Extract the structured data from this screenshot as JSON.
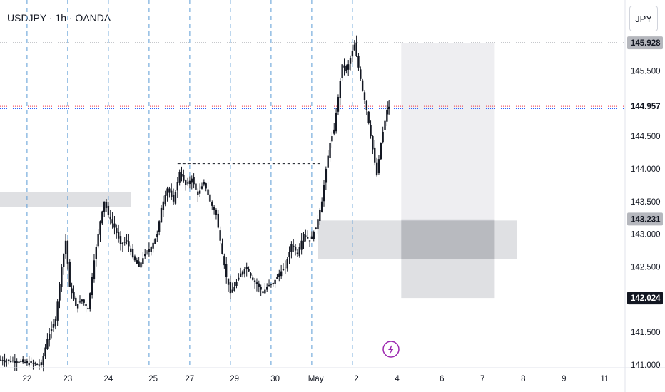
{
  "header": {
    "symbol_title": "USDJPY · 1h · OANDA",
    "currency_button": "JPY"
  },
  "colors": {
    "candle": "#131722",
    "grid_dashed": "#5b9bd5",
    "zone_light": "#dcdde0",
    "zone_lighter": "#ececef",
    "zone_dark": "#b5b7bd",
    "red_line": "#f23645",
    "blue_line": "#2962ff",
    "event_icon": "#9c27b0"
  },
  "price_labels": [
    {
      "label": "145.928",
      "value": 145.928,
      "style": "gray"
    },
    {
      "label": "144.957",
      "value": 144.957,
      "style": "outline"
    },
    {
      "label": "143.231",
      "value": 143.231,
      "style": "gray"
    },
    {
      "label": "142.024",
      "value": 142.024,
      "style": "dark"
    }
  ],
  "event_icon": "lightning-icon",
  "chart_data": {
    "type": "candlestick",
    "title": "USDJPY · 1h · OANDA",
    "ylim": [
      141.0,
      146.3
    ],
    "y_ticks": [
      "145.500",
      "144.500",
      "144.000",
      "143.500",
      "143.000",
      "142.500",
      "141.500",
      "141.000"
    ],
    "x_ticks": [
      "22",
      "23",
      "24",
      "25",
      "27",
      "29",
      "30",
      "May",
      "2",
      "4",
      "6",
      "7",
      "8",
      "9",
      "11"
    ],
    "x_tick_slot": [
      0.7,
      1.7,
      2.7,
      3.8,
      4.7,
      5.8,
      6.8,
      7.8,
      8.8,
      9.8,
      10.9,
      11.9,
      12.9,
      13.9,
      14.9
    ],
    "session_lines_slot": [
      0.7,
      1.7,
      2.7,
      3.7,
      4.7,
      5.7,
      6.7,
      7.7,
      8.7
    ],
    "horizontal_levels": [
      {
        "value": 145.928,
        "style": "dotted"
      },
      {
        "value": 145.5,
        "style": "solid"
      },
      {
        "value": 144.957,
        "style": "red-dotted"
      },
      {
        "value": 144.92,
        "style": "blue-dotted"
      },
      {
        "value": 144.08,
        "style": "black-dashed",
        "from_slot": 4.4,
        "to_slot": 7.9
      }
    ],
    "zones": [
      {
        "name": "left-supply",
        "from_slot": 0.0,
        "to_slot": 3.25,
        "low": 143.42,
        "high": 143.64,
        "shade": "light"
      },
      {
        "name": "demand-zone",
        "from_slot": 7.85,
        "to_slot": 12.75,
        "low": 142.62,
        "high": 143.21,
        "shade": "light"
      },
      {
        "name": "target-box",
        "from_slot": 9.9,
        "to_slot": 12.2,
        "low": 143.231,
        "high": 145.928,
        "shade": "lighter"
      },
      {
        "name": "stop-box",
        "from_slot": 9.9,
        "to_slot": 12.2,
        "low": 142.024,
        "high": 143.231,
        "shade": "light"
      },
      {
        "name": "overlap-box",
        "from_slot": 9.9,
        "to_slot": 12.2,
        "low": 142.62,
        "high": 143.21,
        "shade": "dark"
      }
    ],
    "series": [
      {
        "name": "close",
        "points": [
          [
            0.0,
            141.08
          ],
          [
            0.5,
            141.05
          ],
          [
            1.05,
            141.0
          ],
          [
            1.2,
            141.4
          ],
          [
            1.4,
            141.7
          ],
          [
            1.55,
            142.5
          ],
          [
            1.65,
            142.9
          ],
          [
            1.75,
            142.2
          ],
          [
            1.9,
            141.9
          ],
          [
            2.05,
            142.0
          ],
          [
            2.2,
            141.85
          ],
          [
            2.35,
            142.6
          ],
          [
            2.5,
            143.2
          ],
          [
            2.6,
            143.5
          ],
          [
            2.7,
            143.3
          ],
          [
            2.85,
            143.1
          ],
          [
            3.0,
            142.85
          ],
          [
            3.15,
            142.9
          ],
          [
            3.3,
            142.65
          ],
          [
            3.45,
            142.5
          ],
          [
            3.6,
            142.7
          ],
          [
            3.75,
            142.8
          ],
          [
            3.9,
            143.0
          ],
          [
            4.0,
            143.4
          ],
          [
            4.15,
            143.7
          ],
          [
            4.3,
            143.5
          ],
          [
            4.45,
            143.95
          ],
          [
            4.6,
            143.75
          ],
          [
            4.75,
            143.85
          ],
          [
            4.9,
            143.6
          ],
          [
            5.05,
            143.8
          ],
          [
            5.2,
            143.5
          ],
          [
            5.35,
            143.3
          ],
          [
            5.5,
            142.7
          ],
          [
            5.6,
            142.35
          ],
          [
            5.7,
            142.1
          ],
          [
            5.8,
            142.2
          ],
          [
            5.95,
            142.4
          ],
          [
            6.1,
            142.5
          ],
          [
            6.25,
            142.3
          ],
          [
            6.4,
            142.2
          ],
          [
            6.5,
            142.1
          ],
          [
            6.6,
            142.2
          ],
          [
            6.75,
            142.25
          ],
          [
            6.9,
            142.4
          ],
          [
            7.05,
            142.5
          ],
          [
            7.2,
            142.85
          ],
          [
            7.35,
            142.7
          ],
          [
            7.5,
            143.0
          ],
          [
            7.65,
            142.9
          ],
          [
            7.8,
            143.1
          ],
          [
            7.95,
            143.5
          ],
          [
            8.05,
            144.0
          ],
          [
            8.15,
            144.4
          ],
          [
            8.25,
            144.6
          ],
          [
            8.35,
            145.1
          ],
          [
            8.45,
            145.6
          ],
          [
            8.55,
            145.5
          ],
          [
            8.65,
            145.7
          ],
          [
            8.75,
            145.9
          ],
          [
            8.85,
            145.55
          ],
          [
            8.95,
            145.2
          ],
          [
            9.05,
            144.9
          ],
          [
            9.15,
            144.5
          ],
          [
            9.3,
            143.9
          ],
          [
            9.4,
            144.4
          ],
          [
            9.55,
            144.9
          ],
          [
            9.6,
            144.95
          ]
        ]
      }
    ]
  }
}
